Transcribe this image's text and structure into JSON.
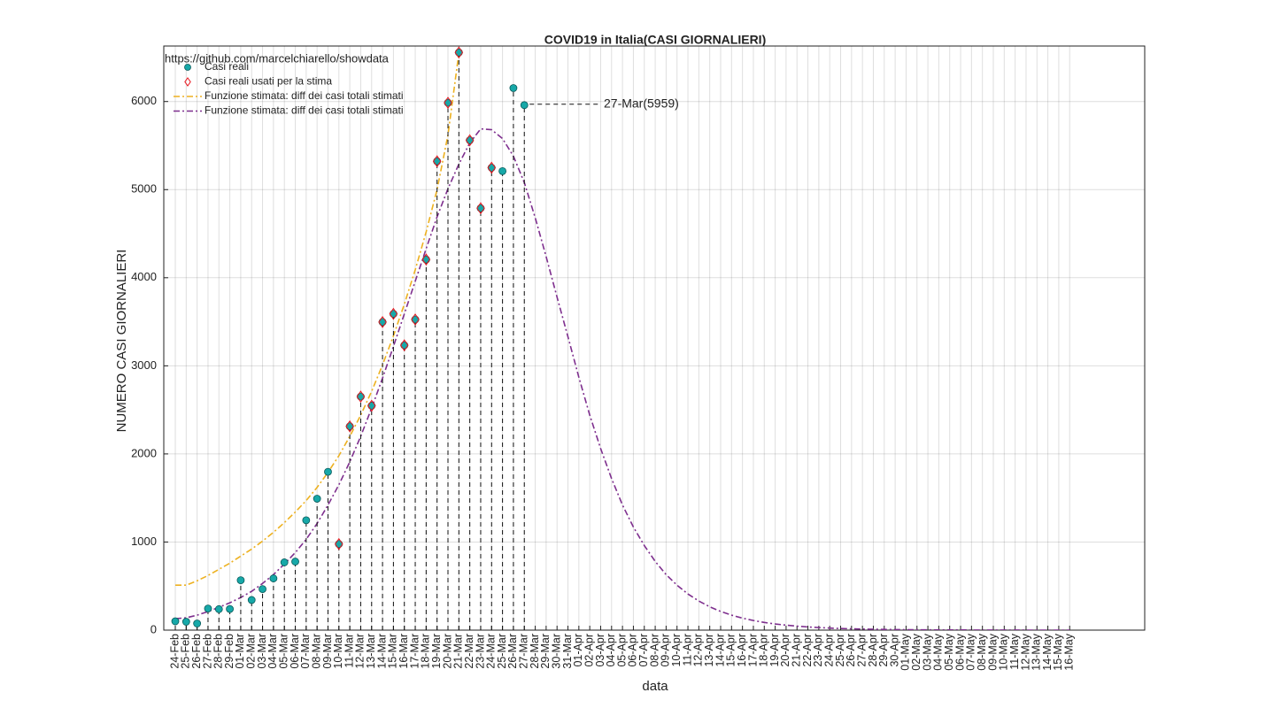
{
  "chart_data": {
    "type": "scatter",
    "title": "COVID19 in Italia(CASI GIORNALIERI)",
    "watermark": "https://github.com/marcelchiarello/showdata",
    "x_label": "data",
    "y_label": "NUMERO CASI GIORNALIERI",
    "annotation": "27-Mar(5959)",
    "ylim": [
      0,
      6630
    ],
    "yticks": [
      0,
      1000,
      2000,
      3000,
      4000,
      5000,
      6000
    ],
    "grid": true,
    "legend": "upper-left",
    "categories": [
      "24-Feb",
      "25-Feb",
      "26-Feb",
      "27-Feb",
      "28-Feb",
      "29-Feb",
      "01-Mar",
      "02-Mar",
      "03-Mar",
      "04-Mar",
      "05-Mar",
      "06-Mar",
      "07-Mar",
      "08-Mar",
      "09-Mar",
      "10-Mar",
      "11-Mar",
      "12-Mar",
      "13-Mar",
      "14-Mar",
      "15-Mar",
      "16-Mar",
      "17-Mar",
      "18-Mar",
      "19-Mar",
      "20-Mar",
      "21-Mar",
      "22-Mar",
      "23-Mar",
      "24-Mar",
      "25-Mar",
      "26-Mar",
      "27-Mar",
      "28-Mar",
      "29-Mar",
      "30-Mar",
      "31-Mar",
      "01-Apr",
      "02-Apr",
      "03-Apr",
      "04-Apr",
      "05-Apr",
      "06-Apr",
      "07-Apr",
      "08-Apr",
      "09-Apr",
      "10-Apr",
      "11-Apr",
      "12-Apr",
      "13-Apr",
      "14-Apr",
      "15-Apr",
      "16-Apr",
      "17-Apr",
      "18-Apr",
      "19-Apr",
      "20-Apr",
      "21-Apr",
      "22-Apr",
      "23-Apr",
      "24-Apr",
      "25-Apr",
      "26-Apr",
      "27-Apr",
      "28-Apr",
      "29-Apr",
      "30-Apr",
      "01-May",
      "02-May",
      "03-May",
      "04-May",
      "05-May",
      "06-May",
      "07-May",
      "08-May",
      "09-May",
      "10-May",
      "11-May",
      "12-May",
      "13-May",
      "14-May",
      "15-May",
      "16-May"
    ],
    "series": [
      {
        "name": "Casi reali",
        "kind": "stem",
        "color": "#17a8a8",
        "values": [
          100,
          95,
          75,
          245,
          238,
          240,
          566,
          342,
          466,
          587,
          769,
          778,
          1247,
          1492,
          1797,
          977,
          2313,
          2651,
          2547,
          3497,
          3590,
          3233,
          3526,
          4207,
          5322,
          5986,
          6557,
          5560,
          4789,
          5249,
          5210,
          6153,
          5959,
          null,
          null,
          null,
          null,
          null,
          null,
          null,
          null,
          null,
          null,
          null,
          null,
          null,
          null,
          null,
          null,
          null,
          null,
          null,
          null,
          null,
          null,
          null,
          null,
          null,
          null,
          null,
          null,
          null,
          null,
          null,
          null,
          null,
          null,
          null,
          null,
          null,
          null,
          null,
          null,
          null,
          null,
          null,
          null,
          null,
          null,
          null,
          null,
          null,
          null
        ]
      },
      {
        "name": "Casi reali usati per la stima",
        "kind": "diamond",
        "color": "#e8141c",
        "values": [
          null,
          null,
          null,
          null,
          null,
          null,
          null,
          null,
          null,
          null,
          null,
          null,
          null,
          null,
          null,
          977,
          2313,
          2651,
          2547,
          3497,
          3590,
          3233,
          3526,
          4207,
          5322,
          5986,
          6557,
          5560,
          4789,
          5249,
          null,
          null,
          null,
          null,
          null,
          null,
          null,
          null,
          null,
          null,
          null,
          null,
          null,
          null,
          null,
          null,
          null,
          null,
          null,
          null,
          null,
          null,
          null,
          null,
          null,
          null,
          null,
          null,
          null,
          null,
          null,
          null,
          null,
          null,
          null,
          null,
          null,
          null,
          null,
          null,
          null,
          null,
          null,
          null,
          null,
          null,
          null,
          null,
          null,
          null,
          null,
          null,
          null
        ]
      },
      {
        "name": "Funzione stimata: diff dei casi totali stimati",
        "kind": "line",
        "color": "#edb120",
        "values": [
          510,
          510,
          560,
          620,
          690,
          760,
          840,
          920,
          1010,
          1110,
          1220,
          1340,
          1470,
          1620,
          1790,
          1980,
          2200,
          2440,
          2710,
          3010,
          3340,
          3700,
          4090,
          4520,
          5000,
          5620,
          6550,
          null,
          null,
          null,
          null,
          null,
          null,
          null,
          null,
          null,
          null,
          null,
          null,
          null,
          null,
          null,
          null,
          null,
          null,
          null,
          null,
          null,
          null,
          null,
          null,
          null,
          null,
          null,
          null,
          null,
          null,
          null,
          null,
          null,
          null,
          null,
          null,
          null,
          null,
          null,
          null,
          null,
          null,
          null,
          null,
          null,
          null,
          null,
          null,
          null,
          null,
          null,
          null,
          null,
          null,
          null,
          null
        ]
      },
      {
        "name": "Funzione stimata: diff dei casi totali stimati",
        "kind": "line",
        "color": "#7e2f8e",
        "values": [
          130,
          140,
          170,
          210,
          260,
          310,
          370,
          440,
          530,
          630,
          750,
          880,
          1030,
          1210,
          1420,
          1650,
          1910,
          2200,
          2520,
          2860,
          3220,
          3590,
          3960,
          4330,
          4690,
          5010,
          5290,
          5530,
          5690,
          5680,
          5580,
          5380,
          5080,
          4680,
          4240,
          3780,
          3330,
          2870,
          2440,
          2060,
          1720,
          1420,
          1170,
          960,
          780,
          630,
          510,
          410,
          330,
          265,
          212,
          170,
          136,
          109,
          87,
          70,
          56,
          45,
          36,
          29,
          23,
          18,
          15,
          12,
          10,
          8,
          6,
          5,
          4,
          3,
          2,
          2,
          2,
          1,
          1,
          1,
          1,
          1,
          0,
          0,
          0,
          0,
          0
        ]
      }
    ]
  }
}
